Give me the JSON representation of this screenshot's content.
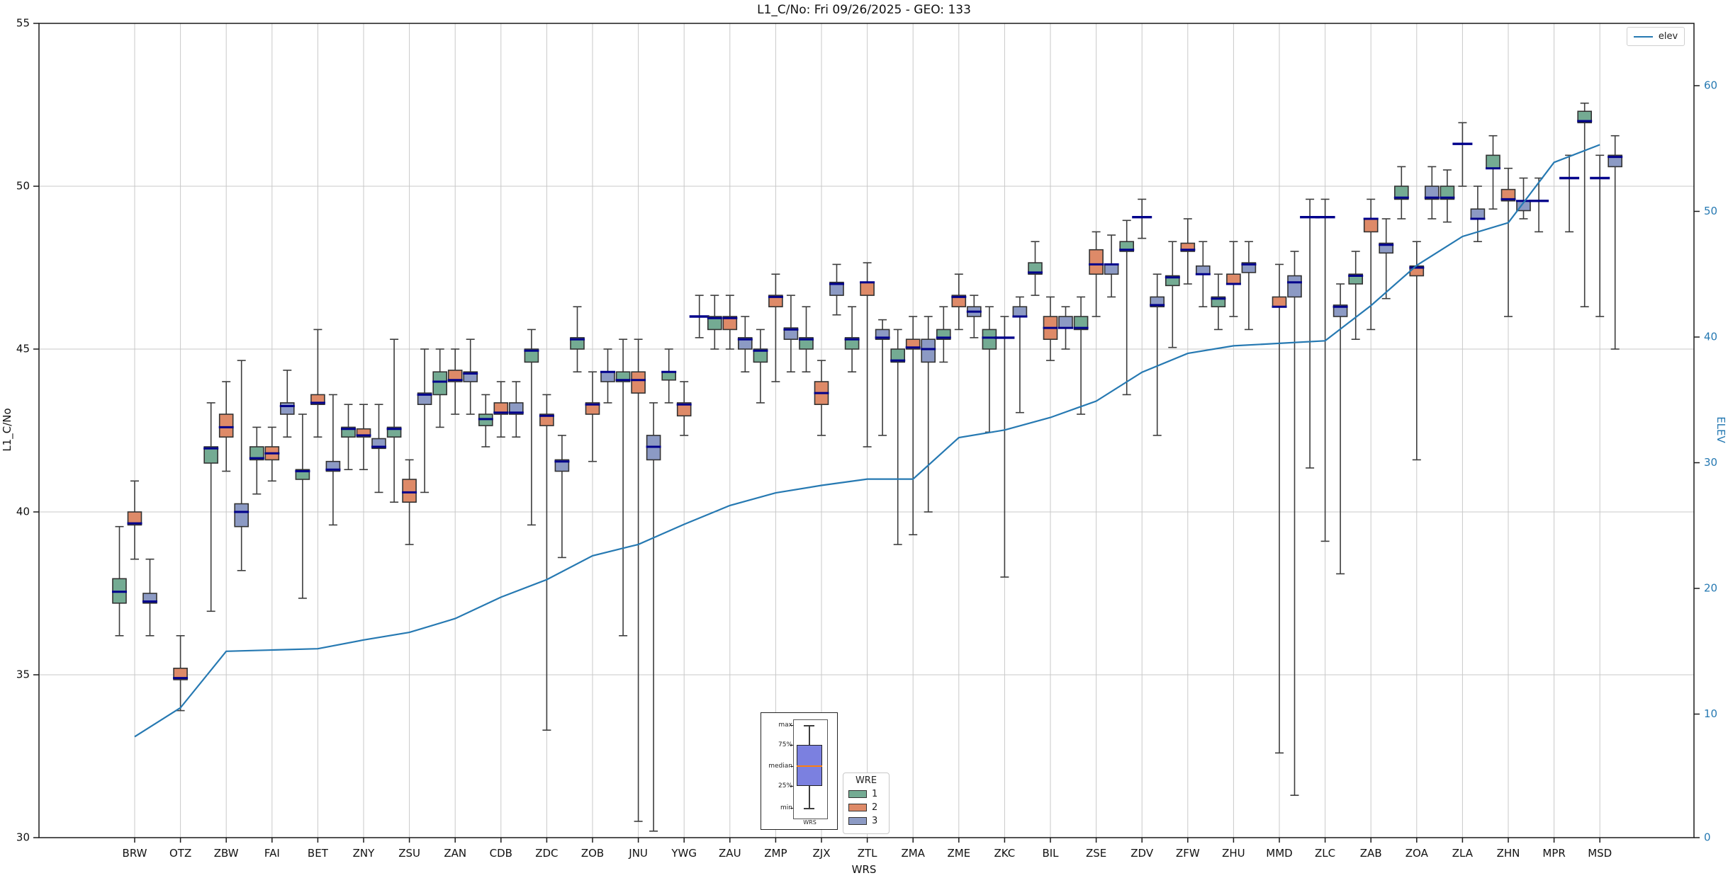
{
  "chart_data": {
    "type": "grouped_boxplot_with_line",
    "title": "L1_C/No: Fri 09/26/2025 - GEO: 133",
    "xlabel": "WRS",
    "ylabel": "L1_C/No",
    "ylabel_right": "ELEV",
    "ylim": [
      30,
      55
    ],
    "yticks": [
      30,
      35,
      40,
      45,
      50,
      55
    ],
    "grid_yticks": [
      35,
      40,
      45,
      50
    ],
    "right_yticks": [
      0,
      10,
      20,
      30,
      40,
      50,
      60
    ],
    "legend_line": "elev",
    "legend_title": "WRE",
    "legend_items": [
      "1",
      "2",
      "3"
    ],
    "wre_colors": {
      "1": "#74ab93",
      "2": "#de8a68",
      "3": "#8c9ac4"
    },
    "style_colors": {
      "median": "#00008b",
      "whisker": "#3d3d3d",
      "box_edge": "#333333",
      "grid": "#c9c9c9",
      "elev_line": "#2679b2",
      "right_axis_text": "#2679b2"
    },
    "categories": [
      "BRW",
      "OTZ",
      "ZBW",
      "FAI",
      "BET",
      "ZNY",
      "ZSU",
      "ZAN",
      "CDB",
      "ZDC",
      "ZOB",
      "JNU",
      "YWG",
      "ZAU",
      "ZMP",
      "ZJX",
      "ZTL",
      "ZMA",
      "ZME",
      "ZKC",
      "BIL",
      "ZSE",
      "ZDV",
      "ZFW",
      "ZHU",
      "MMD",
      "ZLC",
      "ZAB",
      "ZOA",
      "ZLA",
      "ZHN",
      "MPR",
      "MSD"
    ],
    "boxes": [
      {
        "1": {
          "med": 37.55,
          "q1": 37.2,
          "q3": 37.95,
          "lo": 36.2,
          "hi": 39.55
        },
        "2": {
          "med": 39.65,
          "q1": 39.6,
          "q3": 40.0,
          "lo": 38.55,
          "hi": 40.95
        },
        "3": {
          "med": 37.25,
          "q1": 37.2,
          "q3": 37.5,
          "lo": 36.2,
          "hi": 38.55
        }
      },
      {
        "2": {
          "med": 34.9,
          "q1": 34.85,
          "q3": 35.2,
          "lo": 33.9,
          "hi": 36.2
        }
      },
      {
        "1": {
          "med": 41.95,
          "q1": 41.5,
          "q3": 42.0,
          "lo": 36.95,
          "hi": 43.35
        },
        "2": {
          "med": 42.6,
          "q1": 42.3,
          "q3": 43.0,
          "lo": 41.25,
          "hi": 44.0
        },
        "3": {
          "med": 40.0,
          "q1": 39.55,
          "q3": 40.25,
          "lo": 38.2,
          "hi": 44.65
        }
      },
      {
        "1": {
          "med": 41.65,
          "q1": 41.6,
          "q3": 42.0,
          "lo": 40.55,
          "hi": 42.6
        },
        "2": {
          "med": 41.8,
          "q1": 41.6,
          "q3": 42.0,
          "lo": 40.95,
          "hi": 42.6
        },
        "3": {
          "med": 43.25,
          "q1": 43.0,
          "q3": 43.35,
          "lo": 42.3,
          "hi": 44.35
        }
      },
      {
        "1": {
          "med": 41.25,
          "q1": 41.0,
          "q3": 41.3,
          "lo": 37.35,
          "hi": 43.0
        },
        "2": {
          "med": 43.35,
          "q1": 43.3,
          "q3": 43.6,
          "lo": 42.3,
          "hi": 45.6
        },
        "3": {
          "med": 41.3,
          "q1": 41.25,
          "q3": 41.55,
          "lo": 39.6,
          "hi": 43.6
        }
      },
      {
        "1": {
          "med": 42.55,
          "q1": 42.3,
          "q3": 42.6,
          "lo": 41.3,
          "hi": 43.3
        },
        "2": {
          "med": 42.35,
          "q1": 42.3,
          "q3": 42.55,
          "lo": 41.3,
          "hi": 43.3
        },
        "3": {
          "med": 42.0,
          "q1": 41.95,
          "q3": 42.25,
          "lo": 40.6,
          "hi": 43.3
        }
      },
      {
        "1": {
          "med": 42.55,
          "q1": 42.3,
          "q3": 42.6,
          "lo": 40.3,
          "hi": 45.3
        },
        "2": {
          "med": 40.6,
          "q1": 40.3,
          "q3": 41.0,
          "lo": 39.0,
          "hi": 41.6
        },
        "3": {
          "med": 43.6,
          "q1": 43.3,
          "q3": 43.65,
          "lo": 40.6,
          "hi": 45.0
        }
      },
      {
        "1": {
          "med": 44.0,
          "q1": 43.6,
          "q3": 44.3,
          "lo": 42.6,
          "hi": 45.0
        },
        "2": {
          "med": 44.05,
          "q1": 44.0,
          "q3": 44.35,
          "lo": 43.0,
          "hi": 45.0
        },
        "3": {
          "med": 44.25,
          "q1": 44.0,
          "q3": 44.3,
          "lo": 43.0,
          "hi": 45.3
        }
      },
      {
        "1": {
          "med": 42.85,
          "q1": 42.65,
          "q3": 43.0,
          "lo": 42.0,
          "hi": 43.6
        },
        "2": {
          "med": 43.05,
          "q1": 43.0,
          "q3": 43.35,
          "lo": 42.3,
          "hi": 44.0
        },
        "3": {
          "med": 43.05,
          "q1": 43.0,
          "q3": 43.35,
          "lo": 42.3,
          "hi": 44.0
        }
      },
      {
        "1": {
          "med": 44.95,
          "q1": 44.6,
          "q3": 45.0,
          "lo": 39.6,
          "hi": 45.6
        },
        "2": {
          "med": 42.95,
          "q1": 42.65,
          "q3": 43.0,
          "lo": 33.3,
          "hi": 43.6
        },
        "3": {
          "med": 41.55,
          "q1": 41.25,
          "q3": 41.6,
          "lo": 38.6,
          "hi": 42.35
        }
      },
      {
        "1": {
          "med": 45.3,
          "q1": 45.0,
          "q3": 45.35,
          "lo": 44.3,
          "hi": 46.3
        },
        "2": {
          "med": 43.3,
          "q1": 43.0,
          "q3": 43.35,
          "lo": 41.55,
          "hi": 44.3
        },
        "3": {
          "med": 44.3,
          "q1": 44.0,
          "q3": 44.3,
          "lo": 43.35,
          "hi": 45.0
        }
      },
      {
        "1": {
          "med": 44.05,
          "q1": 44.0,
          "q3": 44.3,
          "lo": 36.2,
          "hi": 45.3
        },
        "2": {
          "med": 44.05,
          "q1": 43.65,
          "q3": 44.3,
          "lo": 30.5,
          "hi": 45.3
        },
        "3": {
          "med": 42.0,
          "q1": 41.6,
          "q3": 42.35,
          "lo": 30.2,
          "hi": 43.35
        }
      },
      {
        "1": {
          "med": 44.3,
          "q1": 44.05,
          "q3": 44.3,
          "lo": 43.35,
          "hi": 45.0
        },
        "2": {
          "med": 43.3,
          "q1": 42.95,
          "q3": 43.35,
          "lo": 42.35,
          "hi": 44.0
        },
        "3": {
          "med": 46.0,
          "q1": 46.0,
          "q3": 46.0,
          "lo": 45.35,
          "hi": 46.65
        }
      },
      {
        "1": {
          "med": 45.95,
          "q1": 45.6,
          "q3": 46.0,
          "lo": 45.0,
          "hi": 46.65
        },
        "2": {
          "med": 45.95,
          "q1": 45.6,
          "q3": 46.0,
          "lo": 45.0,
          "hi": 46.65
        },
        "3": {
          "med": 45.3,
          "q1": 45.0,
          "q3": 45.35,
          "lo": 44.3,
          "hi": 46.0
        }
      },
      {
        "1": {
          "med": 44.95,
          "q1": 44.6,
          "q3": 45.0,
          "lo": 43.35,
          "hi": 45.6
        },
        "2": {
          "med": 46.6,
          "q1": 46.3,
          "q3": 46.65,
          "lo": 44.0,
          "hi": 47.3
        },
        "3": {
          "med": 45.6,
          "q1": 45.3,
          "q3": 45.65,
          "lo": 44.3,
          "hi": 46.65
        }
      },
      {
        "1": {
          "med": 45.3,
          "q1": 45.0,
          "q3": 45.35,
          "lo": 44.3,
          "hi": 46.3
        },
        "2": {
          "med": 43.65,
          "q1": 43.3,
          "q3": 44.0,
          "lo": 42.35,
          "hi": 44.65
        },
        "3": {
          "med": 47.0,
          "q1": 46.65,
          "q3": 47.05,
          "lo": 46.05,
          "hi": 47.6
        }
      },
      {
        "1": {
          "med": 45.3,
          "q1": 45.0,
          "q3": 45.35,
          "lo": 44.3,
          "hi": 46.3
        },
        "2": {
          "med": 47.05,
          "q1": 46.65,
          "q3": 47.05,
          "lo": 42.0,
          "hi": 47.65
        },
        "3": {
          "med": 45.35,
          "q1": 45.3,
          "q3": 45.6,
          "lo": 42.35,
          "hi": 45.9
        }
      },
      {
        "1": {
          "med": 44.65,
          "q1": 44.6,
          "q3": 45.0,
          "lo": 39.0,
          "hi": 45.6
        },
        "2": {
          "med": 45.05,
          "q1": 45.0,
          "q3": 45.3,
          "lo": 39.3,
          "hi": 46.0
        },
        "3": {
          "med": 45.0,
          "q1": 44.6,
          "q3": 45.3,
          "lo": 40.0,
          "hi": 46.0
        }
      },
      {
        "1": {
          "med": 45.35,
          "q1": 45.3,
          "q3": 45.6,
          "lo": 44.6,
          "hi": 46.3
        },
        "2": {
          "med": 46.6,
          "q1": 46.3,
          "q3": 46.65,
          "lo": 45.6,
          "hi": 47.3
        },
        "3": {
          "med": 46.15,
          "q1": 46.0,
          "q3": 46.3,
          "lo": 45.35,
          "hi": 46.65
        }
      },
      {
        "1": {
          "med": 45.35,
          "q1": 45.0,
          "q3": 45.6,
          "lo": 42.45,
          "hi": 46.3
        },
        "2": {
          "med": 45.35,
          "q1": 45.35,
          "q3": 45.35,
          "lo": 38.0,
          "hi": 46.0
        },
        "3": {
          "med": 46.0,
          "q1": 46.0,
          "q3": 46.3,
          "lo": 43.05,
          "hi": 46.6
        }
      },
      {
        "1": {
          "med": 47.35,
          "q1": 47.3,
          "q3": 47.65,
          "lo": 46.65,
          "hi": 48.3
        },
        "2": {
          "med": 45.65,
          "q1": 45.3,
          "q3": 46.0,
          "lo": 44.65,
          "hi": 46.6
        },
        "3": {
          "med": 45.65,
          "q1": 45.65,
          "q3": 46.0,
          "lo": 45.0,
          "hi": 46.3
        }
      },
      {
        "1": {
          "med": 45.65,
          "q1": 45.6,
          "q3": 46.0,
          "lo": 43.0,
          "hi": 46.6
        },
        "2": {
          "med": 47.6,
          "q1": 47.3,
          "q3": 48.05,
          "lo": 46.0,
          "hi": 48.6
        },
        "3": {
          "med": 47.6,
          "q1": 47.3,
          "q3": 47.6,
          "lo": 46.6,
          "hi": 48.5
        }
      },
      {
        "1": {
          "med": 48.05,
          "q1": 48.0,
          "q3": 48.3,
          "lo": 43.6,
          "hi": 48.95
        },
        "2": {
          "med": 49.05,
          "q1": 49.05,
          "q3": 49.05,
          "lo": 48.4,
          "hi": 49.6
        },
        "3": {
          "med": 46.35,
          "q1": 46.3,
          "q3": 46.6,
          "lo": 42.35,
          "hi": 47.3
        }
      },
      {
        "1": {
          "med": 47.2,
          "q1": 46.95,
          "q3": 47.25,
          "lo": 45.05,
          "hi": 48.3
        },
        "2": {
          "med": 48.05,
          "q1": 48.0,
          "q3": 48.25,
          "lo": 47.0,
          "hi": 49.0
        },
        "3": {
          "med": 47.3,
          "q1": 47.3,
          "q3": 47.55,
          "lo": 46.3,
          "hi": 48.3
        }
      },
      {
        "1": {
          "med": 46.55,
          "q1": 46.3,
          "q3": 46.6,
          "lo": 45.6,
          "hi": 47.3
        },
        "2": {
          "med": 47.0,
          "q1": 47.0,
          "q3": 47.3,
          "lo": 46.0,
          "hi": 48.3
        },
        "3": {
          "med": 47.6,
          "q1": 47.35,
          "q3": 47.65,
          "lo": 45.6,
          "hi": 48.3
        }
      },
      {
        "2": {
          "med": 46.3,
          "q1": 46.3,
          "q3": 46.6,
          "lo": 32.6,
          "hi": 47.6
        },
        "3": {
          "med": 47.05,
          "q1": 46.6,
          "q3": 47.25,
          "lo": 31.3,
          "hi": 48.0
        }
      },
      {
        "1": {
          "med": 49.05,
          "q1": 49.05,
          "q3": 49.05,
          "lo": 41.35,
          "hi": 49.6
        },
        "2": {
          "med": 49.05,
          "q1": 49.05,
          "q3": 49.05,
          "lo": 39.1,
          "hi": 49.6
        },
        "3": {
          "med": 46.3,
          "q1": 46.0,
          "q3": 46.35,
          "lo": 38.1,
          "hi": 47.0
        }
      },
      {
        "1": {
          "med": 47.25,
          "q1": 47.0,
          "q3": 47.3,
          "lo": 45.3,
          "hi": 48.0
        },
        "2": {
          "med": 49.0,
          "q1": 48.6,
          "q3": 49.0,
          "lo": 45.6,
          "hi": 49.6
        },
        "3": {
          "med": 48.2,
          "q1": 47.95,
          "q3": 48.25,
          "lo": 46.55,
          "hi": 49.0
        }
      },
      {
        "1": {
          "med": 49.65,
          "q1": 49.6,
          "q3": 50.0,
          "lo": 49.0,
          "hi": 50.6
        },
        "2": {
          "med": 47.5,
          "q1": 47.25,
          "q3": 47.55,
          "lo": 41.6,
          "hi": 48.3
        },
        "3": {
          "med": 49.65,
          "q1": 49.6,
          "q3": 50.0,
          "lo": 49.0,
          "hi": 50.6
        }
      },
      {
        "1": {
          "med": 49.65,
          "q1": 49.6,
          "q3": 50.0,
          "lo": 48.9,
          "hi": 50.5
        },
        "2": {
          "med": 51.3,
          "q1": 51.3,
          "q3": 51.3,
          "lo": 50.0,
          "hi": 51.95
        },
        "3": {
          "med": 49.0,
          "q1": 49.0,
          "q3": 49.3,
          "lo": 48.3,
          "hi": 50.0
        }
      },
      {
        "1": {
          "med": 50.55,
          "q1": 50.55,
          "q3": 50.95,
          "lo": 49.3,
          "hi": 51.55
        },
        "2": {
          "med": 49.6,
          "q1": 49.55,
          "q3": 49.9,
          "lo": 46.0,
          "hi": 50.55
        },
        "3": {
          "med": 49.55,
          "q1": 49.25,
          "q3": 49.55,
          "lo": 49.0,
          "hi": 50.25
        }
      },
      {
        "1": {
          "med": 49.55,
          "q1": 49.55,
          "q3": 49.55,
          "lo": 48.6,
          "hi": 50.25
        },
        "3": {
          "med": 50.25,
          "q1": 50.25,
          "q3": 50.25,
          "lo": 48.6,
          "hi": 50.95
        }
      },
      {
        "1": {
          "med": 52.0,
          "q1": 51.95,
          "q3": 52.3,
          "lo": 46.3,
          "hi": 52.55
        },
        "2": {
          "med": 50.25,
          "q1": 50.25,
          "q3": 50.25,
          "lo": 46.0,
          "hi": 50.95
        },
        "3": {
          "med": 50.9,
          "q1": 50.6,
          "q3": 50.95,
          "lo": 45.0,
          "hi": 51.55
        }
      }
    ],
    "elev": [
      8.2,
      10.5,
      15.0,
      15.1,
      15.2,
      15.9,
      16.5,
      17.6,
      19.3,
      20.7,
      22.6,
      23.5,
      25.1,
      26.6,
      27.6,
      28.2,
      28.7,
      28.7,
      32.0,
      32.6,
      33.6,
      34.9,
      37.2,
      38.7,
      39.3,
      39.5,
      39.7,
      42.5,
      45.7,
      48.0,
      49.1,
      53.9,
      55.3
    ]
  },
  "inset": {
    "labels": [
      "max",
      "75%",
      "median",
      "25%",
      "min"
    ],
    "xlabel": "WRS"
  }
}
